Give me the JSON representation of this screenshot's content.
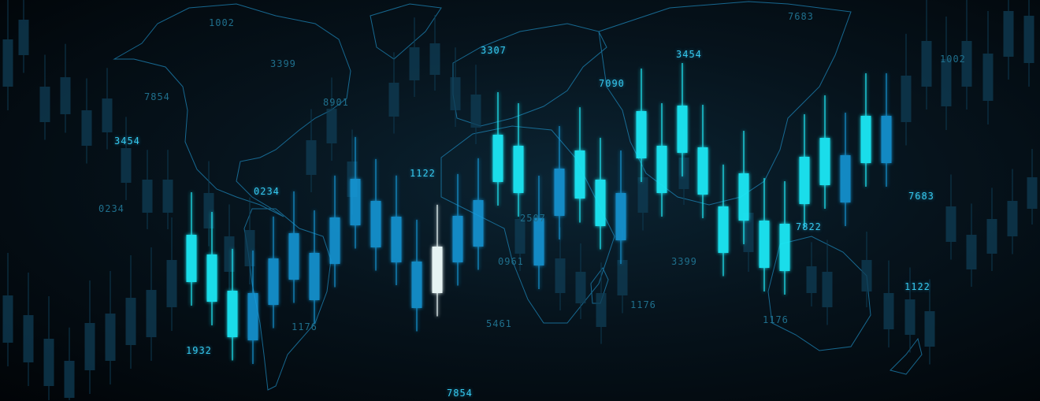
{
  "colors": {
    "background": "#02070c",
    "map_outline": "#1d86b8",
    "candle_bright": "#1ee8f5",
    "candle_blue": "#169ee0",
    "candle_dark": "#0f3d55",
    "candle_highlight": "#f2ffff"
  },
  "labels": [
    "1002",
    "3399",
    "7854",
    "3454",
    "0234",
    "8901",
    "0234",
    "1122",
    "1932",
    "1176",
    "3307",
    "5461",
    "7854",
    "0961",
    "2507",
    "7090",
    "3454",
    "7683",
    "1002",
    "7683",
    "7822",
    "3399",
    "1176",
    "1176",
    "1122"
  ]
}
